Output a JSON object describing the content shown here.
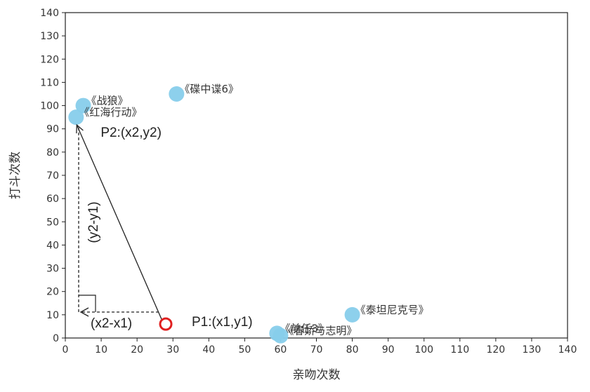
{
  "chart_data": {
    "type": "scatter",
    "title": "",
    "xlabel": "亲吻次数",
    "ylabel": "打斗次数",
    "xlim": [
      0,
      140
    ],
    "ylim": [
      0,
      140
    ],
    "x_ticks": [
      "0",
      "10",
      "20",
      "30",
      "40",
      "50",
      "60",
      "70",
      "80",
      "90",
      "100",
      "110",
      "120",
      "130",
      "140"
    ],
    "y_ticks": [
      "0",
      "10",
      "20",
      "30",
      "40",
      "50",
      "60",
      "70",
      "80",
      "90",
      "100",
      "110",
      "120",
      "130",
      "140"
    ],
    "grid": false,
    "point_color": "#87CEEB",
    "points": [
      {
        "label": "《战狼》",
        "x": 5,
        "y": 100
      },
      {
        "label": "《红海行动》",
        "x": 3,
        "y": 95
      },
      {
        "label": "《碟中谍6》",
        "x": 31,
        "y": 105
      },
      {
        "label": "《前任3》",
        "x": 59,
        "y": 2
      },
      {
        "label": "《春娇与志明》",
        "x": 60,
        "y": 1
      },
      {
        "label": "《泰坦尼克号》",
        "x": 80,
        "y": 10
      }
    ],
    "query_point": {
      "x": 28,
      "y": 6,
      "color": "#E02020"
    },
    "annotations": {
      "p1": "P1:(x1,y1)",
      "p2": "P2:(x2,y2)",
      "dx": "(x2-x1)",
      "dy": "(y2-y1)"
    }
  }
}
